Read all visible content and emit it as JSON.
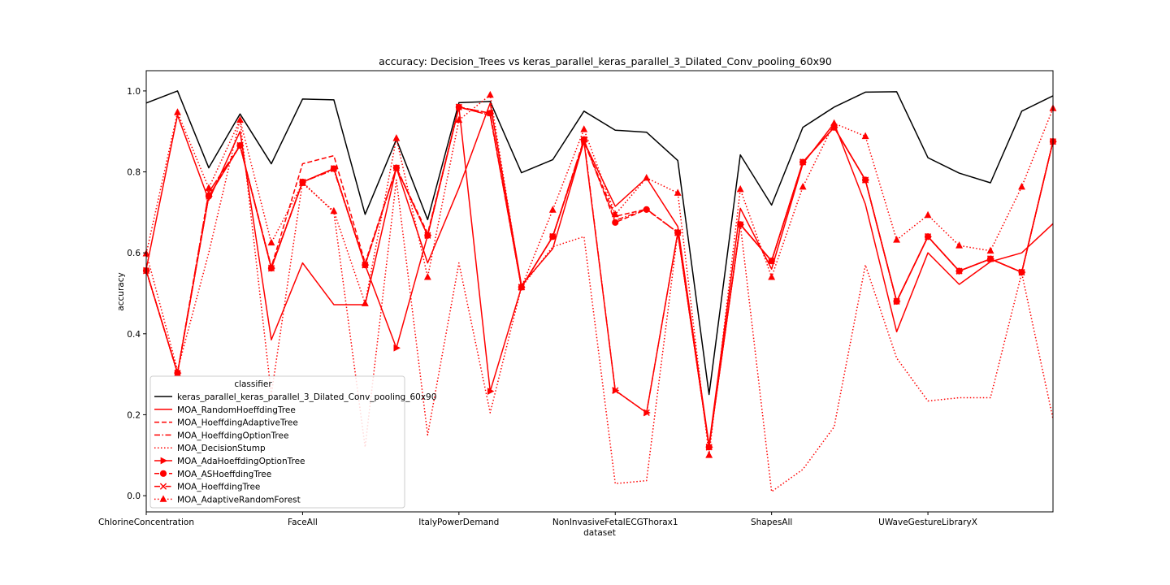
{
  "chart_data": {
    "type": "line",
    "title": "accuracy: Decision_Trees vs keras_parallel_keras_parallel_3_Dilated_Conv_pooling_60x90",
    "xlabel": "dataset",
    "ylabel": "accuracy",
    "ylim": [
      -0.04,
      1.05
    ],
    "yticks": [
      0.0,
      0.2,
      0.4,
      0.6,
      0.8,
      1.0
    ],
    "ytick_labels": [
      "0.0",
      "0.2",
      "0.4",
      "0.6",
      "0.8",
      "1.0"
    ],
    "x": [
      0,
      1,
      2,
      3,
      4,
      5,
      6,
      7,
      8,
      9,
      10,
      11,
      12,
      13,
      14,
      15,
      16,
      17,
      18,
      19,
      20,
      21,
      22,
      23,
      24,
      25,
      26,
      27,
      28,
      29
    ],
    "xlim": [
      0,
      29
    ],
    "xticks": [
      0,
      5,
      10,
      15,
      20,
      25
    ],
    "xtick_labels": [
      "ChlorineConcentration",
      "FaceAll",
      "ItalyPowerDemand",
      "NonInvasiveFetalECGThorax1",
      "ShapesAll",
      "UWaveGestureLibraryX"
    ],
    "legend": {
      "title": "classifier",
      "placement": "lower-left"
    },
    "series": [
      {
        "name": "keras_parallel_keras_parallel_3_Dilated_Conv_pooling_60x90",
        "color": "#000000",
        "dash": "solid",
        "marker": "none",
        "values": [
          0.97,
          1.0,
          0.81,
          0.943,
          0.82,
          0.98,
          0.978,
          0.695,
          0.88,
          0.682,
          0.971,
          0.974,
          0.798,
          0.83,
          0.95,
          0.903,
          0.898,
          0.828,
          0.25,
          0.842,
          0.718,
          0.91,
          0.96,
          0.997,
          0.998,
          0.835,
          0.797,
          0.773,
          0.95,
          0.988
        ]
      },
      {
        "name": "MOA_RandomHoeffdingTree",
        "color": "#ff0000",
        "dash": "solid",
        "marker": "none",
        "values": [
          0.56,
          0.94,
          0.73,
          0.9,
          0.385,
          0.575,
          0.472,
          0.472,
          0.81,
          0.575,
          0.76,
          0.97,
          0.52,
          0.61,
          0.875,
          0.715,
          0.785,
          0.665,
          0.125,
          0.71,
          0.56,
          0.82,
          0.92,
          0.72,
          0.405,
          0.6,
          0.522,
          0.578,
          0.6,
          0.672
        ]
      },
      {
        "name": "MOA_HoeffdingAdaptiveTree",
        "color": "#ff0000",
        "dash": "dashed",
        "marker": "none",
        "values": [
          0.556,
          0.303,
          0.75,
          0.865,
          0.565,
          0.82,
          0.84,
          0.575,
          0.81,
          0.648,
          0.96,
          0.94,
          0.515,
          0.64,
          0.875,
          0.69,
          0.708,
          0.65,
          0.122,
          0.67,
          0.58,
          0.824,
          0.91,
          0.78,
          0.48,
          0.64,
          0.555,
          0.585,
          0.552,
          0.875
        ]
      },
      {
        "name": "MOA_HoeffdingOptionTree",
        "color": "#ff0000",
        "dash": "dashdot",
        "marker": "none",
        "values": [
          0.556,
          0.303,
          0.74,
          0.865,
          0.565,
          0.775,
          0.805,
          0.57,
          0.81,
          0.643,
          0.96,
          0.94,
          0.515,
          0.64,
          0.875,
          0.68,
          0.708,
          0.65,
          0.122,
          0.67,
          0.58,
          0.824,
          0.91,
          0.78,
          0.48,
          0.64,
          0.555,
          0.585,
          0.552,
          0.875
        ]
      },
      {
        "name": "MOA_DecisionStump",
        "color": "#ff0000",
        "dash": "dotted",
        "marker": "none",
        "values": [
          0.6,
          0.31,
          0.6,
          0.93,
          0.25,
          0.775,
          0.7,
          0.12,
          0.78,
          0.15,
          0.575,
          0.205,
          0.515,
          0.615,
          0.64,
          0.03,
          0.037,
          0.65,
          0.12,
          0.67,
          0.01,
          0.065,
          0.17,
          0.57,
          0.34,
          0.234,
          0.242,
          0.242,
          0.55,
          0.19
        ]
      },
      {
        "name": "MOA_AdaHoeffdingOptionTree",
        "color": "#ff0000",
        "dash": "solid",
        "marker": "triangle-right",
        "values": [
          0.556,
          0.303,
          0.74,
          0.865,
          0.562,
          0.775,
          0.808,
          0.57,
          0.365,
          0.643,
          0.96,
          0.258,
          0.515,
          0.64,
          0.875,
          0.26,
          0.205,
          0.65,
          0.12,
          0.67,
          0.58,
          0.824,
          0.91,
          0.78,
          0.48,
          0.64,
          0.555,
          0.585,
          0.552,
          0.875
        ]
      },
      {
        "name": "MOA_ASHoeffdingTree",
        "color": "#ff0000",
        "dash": "dashed",
        "marker": "circle",
        "values": [
          0.556,
          0.303,
          0.74,
          0.865,
          0.562,
          0.775,
          0.808,
          0.57,
          0.81,
          0.643,
          0.96,
          0.945,
          0.515,
          0.64,
          0.88,
          0.675,
          0.707,
          0.65,
          0.12,
          0.67,
          0.58,
          0.824,
          0.91,
          0.78,
          0.48,
          0.64,
          0.555,
          0.585,
          0.552,
          0.875
        ]
      },
      {
        "name": "MOA_HoeffdingTree",
        "color": "#ff0000",
        "dash": "dashdot",
        "marker": "x",
        "values": [
          0.556,
          0.303,
          0.75,
          0.865,
          0.562,
          0.775,
          0.808,
          0.57,
          0.81,
          0.643,
          0.96,
          0.945,
          0.515,
          0.64,
          0.88,
          0.26,
          0.205,
          0.65,
          0.12,
          0.67,
          0.58,
          0.824,
          0.91,
          0.78,
          0.48,
          0.64,
          0.555,
          0.585,
          0.552,
          0.875
        ]
      },
      {
        "name": "MOA_AdaptiveRandomForest",
        "color": "#ff0000",
        "dash": "dotted",
        "marker": "triangle-up",
        "values": [
          0.598,
          0.947,
          0.76,
          0.928,
          0.625,
          0.772,
          0.703,
          0.475,
          0.883,
          0.54,
          0.928,
          0.99,
          0.515,
          0.706,
          0.905,
          0.695,
          0.785,
          0.748,
          0.1,
          0.757,
          0.54,
          0.763,
          0.92,
          0.888,
          0.632,
          0.693,
          0.618,
          0.605,
          0.763,
          0.957
        ]
      }
    ]
  }
}
